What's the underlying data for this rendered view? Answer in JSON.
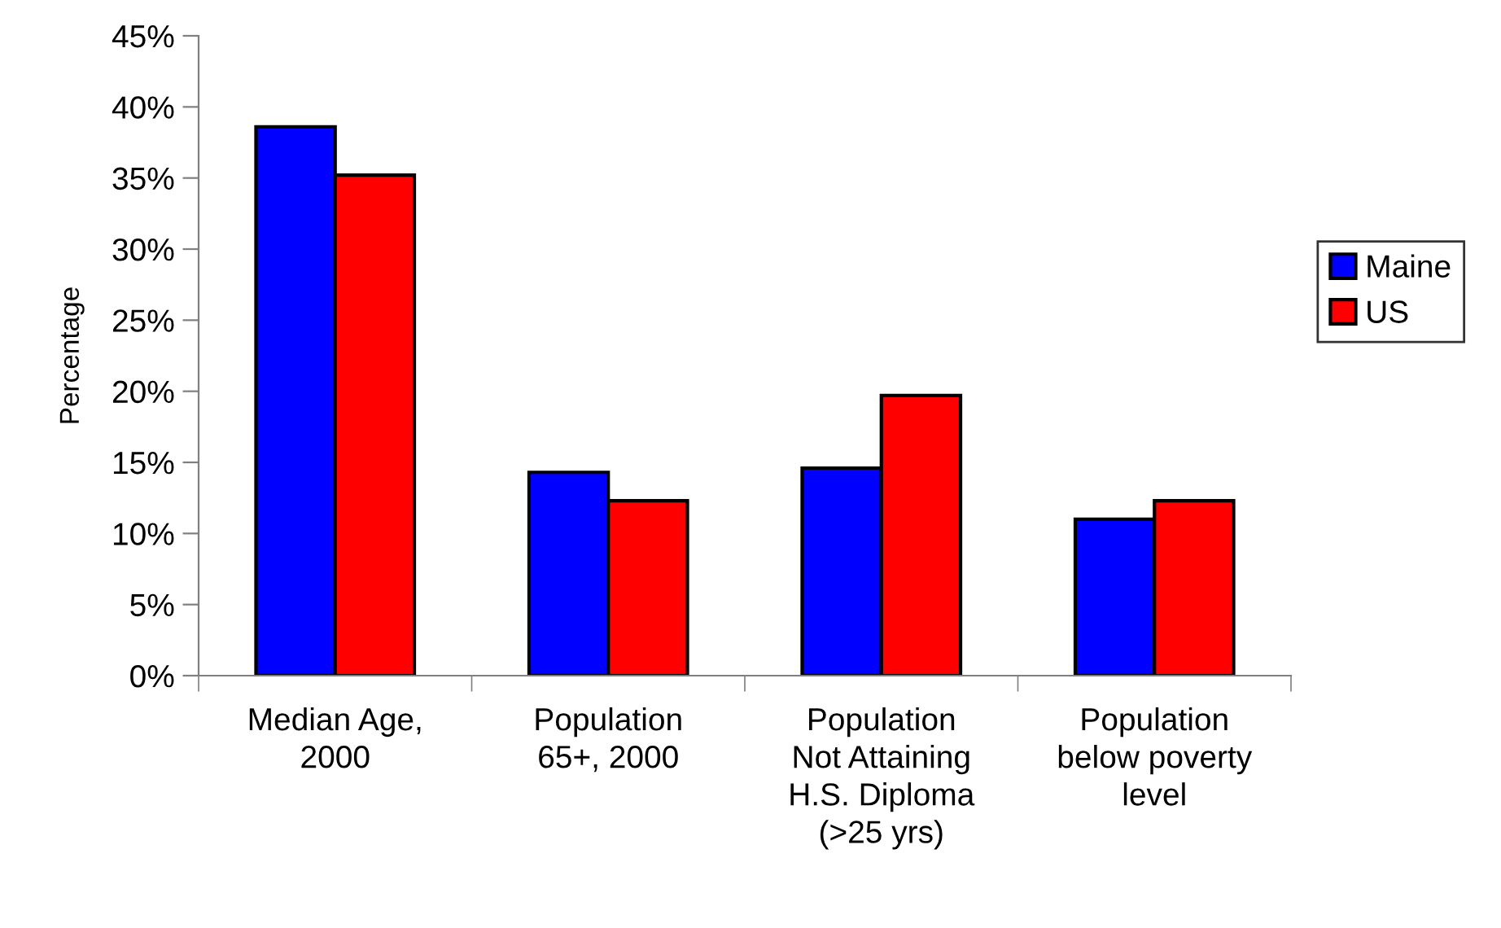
{
  "chart_data": {
    "type": "bar",
    "ylabel": "Percentage",
    "categories": [
      "Median Age,\n2000",
      "Population\n65+, 2000",
      "Population\nNot Attaining\nH.S. Diploma\n(>25 yrs)",
      "Population\nbelow poverty\nlevel"
    ],
    "series": [
      {
        "name": "Maine",
        "color": "#0000ff",
        "values": [
          38.6,
          14.3,
          14.6,
          11.0
        ]
      },
      {
        "name": "US",
        "color": "#ff0000",
        "values": [
          35.2,
          12.3,
          19.7,
          12.3
        ]
      }
    ],
    "ylim": [
      0,
      45
    ],
    "yticks": [
      {
        "value": 0,
        "label": "0%"
      },
      {
        "value": 5,
        "label": "5%"
      },
      {
        "value": 10,
        "label": "10%"
      },
      {
        "value": 15,
        "label": "15%"
      },
      {
        "value": 20,
        "label": "20%"
      },
      {
        "value": 25,
        "label": "25%"
      },
      {
        "value": 30,
        "label": "30%"
      },
      {
        "value": 35,
        "label": "35%"
      },
      {
        "value": 40,
        "label": "40%"
      },
      {
        "value": 45,
        "label": "45%"
      }
    ],
    "grid": false,
    "legend": "right"
  }
}
